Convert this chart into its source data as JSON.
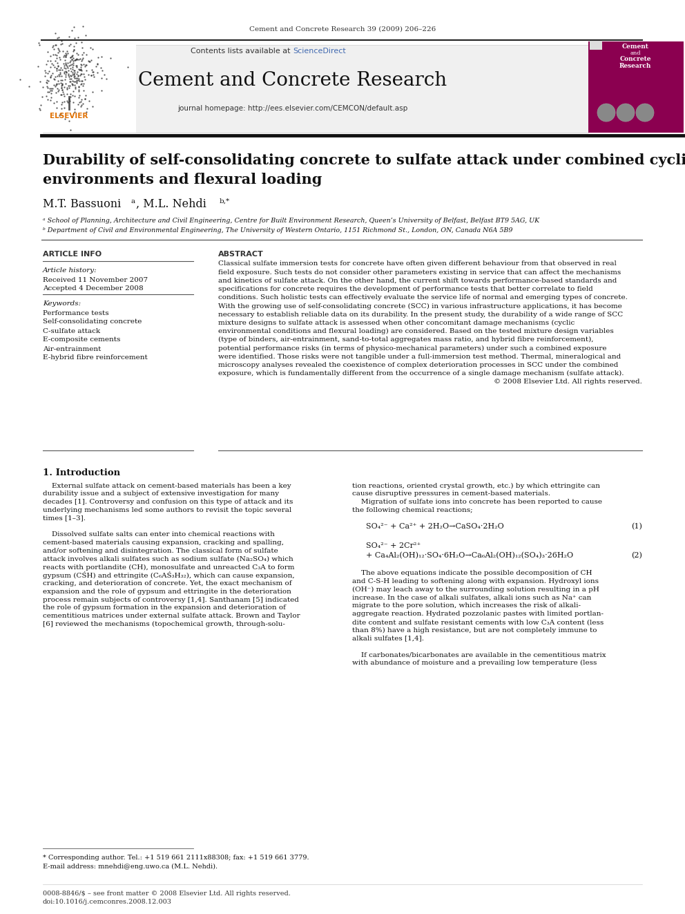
{
  "page_width": 9.92,
  "page_height": 13.23,
  "bg_color": "#ffffff",
  "top_citation": "Cement and Concrete Research 39 (2009) 206–226",
  "journal_header_bg": "#f0f0f0",
  "contents_text": "Contents lists available at ",
  "sciencedirect_text": "ScienceDirect",
  "sciencedirect_color": "#4169b0",
  "journal_title": "Cement and Concrete Research",
  "journal_homepage": "journal homepage: http://ees.elsevier.com/CEMCON/default.asp",
  "article_title_line1": "Durability of self-consolidating concrete to sulfate attack under combined cyclic",
  "article_title_line2": "environments and flexural loading",
  "affiliation_a": "ᵃ School of Planning, Architecture and Civil Engineering, Centre for Built Environment Research, Queen’s University of Belfast, Belfast BT9 5AG, UK",
  "affiliation_b": "ᵇ Department of Civil and Environmental Engineering, The University of Western Ontario, 1151 Richmond St., London, ON, Canada N6A 5B9",
  "section_article_info": "ARTICLE INFO",
  "section_abstract": "ABSTRACT",
  "article_history_label": "Article history:",
  "received": "Received 11 November 2007",
  "accepted": "Accepted 4 December 2008",
  "keywords_label": "Keywords:",
  "keywords": [
    "Performance tests",
    "Self-consolidating concrete",
    "C-sulfate attack",
    "E-composite cements",
    "Air-entrainment",
    "E-hybrid fibre reinforcement"
  ],
  "section1_title": "1. Introduction",
  "eq1": "SO₄²⁻ + Ca²⁺ + 2H₂O→CaSO₄·2H₂O",
  "eq1_num": "(1)",
  "eq2a": "SO₄²⁻ + 2Cr²⁺",
  "eq2b": "+ Ca₄Al₂(OH)₁₂·SO₄·6H₂O→Ca₆Al₂(OH)₁₂(SO₄)₃·26H₂O",
  "eq2_num": "(2)",
  "footnote_corresponding": "* Corresponding author. Tel.: +1 519 661 2111x88308; fax: +1 519 661 3779.",
  "footnote_email": "E-mail address: mnehdi@eng.uwo.ca (M.L. Nehdi).",
  "footer_left": "0008-8846/$ – see front matter © 2008 Elsevier Ltd. All rights reserved.",
  "footer_doi": "doi:10.1016/j.cemconres.2008.12.003",
  "sidebar_bg": "#8b0050"
}
